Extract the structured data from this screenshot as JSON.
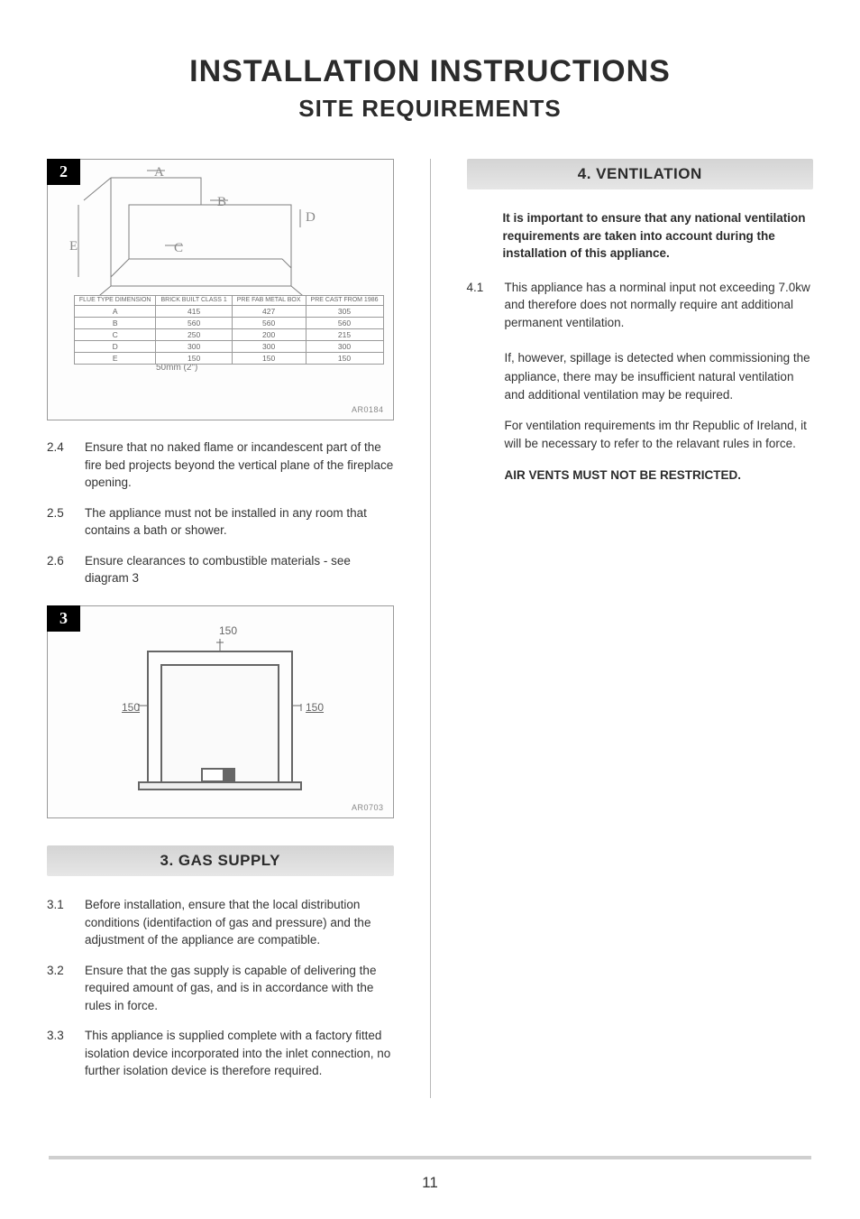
{
  "title": "INSTALLATION INSTRUCTIONS",
  "subtitle": "SITE REQUIREMENTS",
  "title_fontsize": 34,
  "subtitle_fontsize": 26,
  "page_number": "11",
  "figure2": {
    "tag": "2",
    "labels": {
      "A": "A",
      "B": "B",
      "C": "C",
      "D": "D",
      "E": "E"
    },
    "depth_label": "50mm (2\")",
    "code": "AR0184",
    "table": {
      "headers": [
        "FLUE TYPE DIMENSION",
        "BRICK BUILT CLASS 1",
        "PRE FAB METAL BOX",
        "PRE CAST FROM 1986"
      ],
      "rows": [
        [
          "A",
          "415",
          "427",
          "305"
        ],
        [
          "B",
          "560",
          "560",
          "560"
        ],
        [
          "C",
          "250",
          "200",
          "215"
        ],
        [
          "D",
          "300",
          "300",
          "300"
        ],
        [
          "E",
          "150",
          "150",
          "150"
        ]
      ],
      "border_color": "#9a9a9a",
      "text_color": "#666666"
    }
  },
  "left_items_1": [
    {
      "num": "2.4",
      "text": "Ensure that no naked flame or incandescent part of the fire bed projects beyond the vertical plane of the fireplace opening."
    },
    {
      "num": "2.5",
      "text": "The appliance must not be installed in any room that contains a bath or shower."
    },
    {
      "num": "2.6",
      "text": "Ensure clearances to combustible materials - see diagram 3"
    }
  ],
  "figure3": {
    "tag": "3",
    "top_dim": "150",
    "left_dim": "150",
    "right_dim": "150",
    "code": "AR0703",
    "stroke": "#666666",
    "fill": "#f4f4f4"
  },
  "section3": {
    "heading": "3. GAS SUPPLY",
    "items": [
      {
        "num": "3.1",
        "text": "Before installation, ensure that the local distribution conditions (identifaction of gas and pressure) and the adjustment of the appliance are compatible."
      },
      {
        "num": "3.2",
        "text": "Ensure that the gas supply is capable of delivering the required amount of gas, and is in accordance with the rules in force."
      },
      {
        "num": "3.3",
        "text": "This appliance is supplied complete with a  factory fitted isolation device incorporated into the inlet connection, no further isolation device is therefore required."
      }
    ]
  },
  "section4": {
    "heading": "4. VENTILATION",
    "note": "It is important to ensure that any national ventilation requirements are taken into account during the installation of this appliance.",
    "item": {
      "num": "4.1",
      "text": "This appliance has a norminal input not exceeding 7.0kw and therefore does not normally require ant additional permanent ventilation."
    },
    "paras": [
      "If, however, spillage is detected when commissioning the appliance, there may be insufficient natural ventilation and additional ventilation may be required.",
      "For ventilation requirements im thr Republic of Ireland, it will be necessary to refer to the relavant rules in force."
    ],
    "final_note": "AIR VENTS MUST NOT BE RESTRICTED."
  },
  "colors": {
    "text": "#333333",
    "heading_bg": "#dcdcdc",
    "rule": "#cfcfcf",
    "border": "#9a9a9a"
  }
}
